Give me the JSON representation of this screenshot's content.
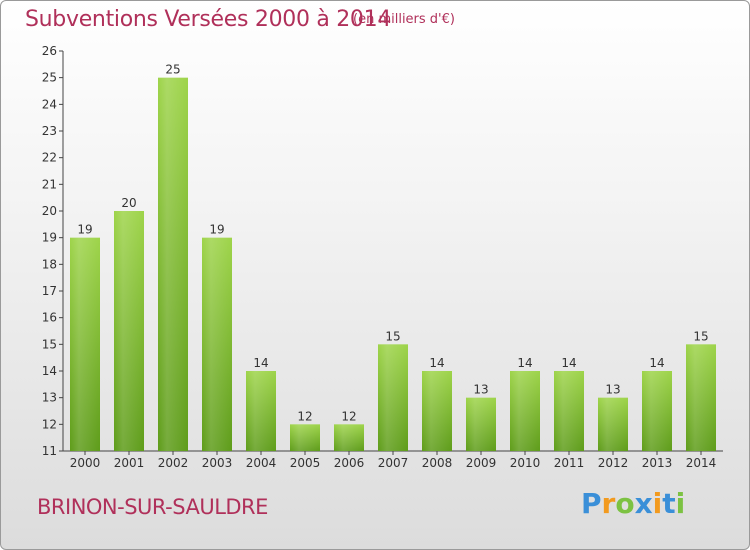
{
  "chart_data": {
    "type": "bar",
    "title": "Subventions Versées 2000 à 2014",
    "unit_note": "(en milliers d'€)",
    "categories": [
      "2000",
      "2001",
      "2002",
      "2003",
      "2004",
      "2005",
      "2006",
      "2007",
      "2008",
      "2009",
      "2010",
      "2011",
      "2012",
      "2013",
      "2014"
    ],
    "values": [
      19,
      20,
      25,
      19,
      14,
      12,
      12,
      15,
      14,
      13,
      14,
      14,
      13,
      14,
      15
    ],
    "ylim": [
      11,
      26
    ],
    "yticks": [
      11,
      12,
      13,
      14,
      15,
      16,
      17,
      18,
      19,
      20,
      21,
      22,
      23,
      24,
      25,
      26
    ],
    "grid": false,
    "xlabel": "",
    "ylabel": "",
    "bar_color": "#7fbf2a"
  },
  "footer": {
    "place_name": "BRINON-SUR-SAULDRE",
    "brand": "Proxiti",
    "brand_letters": [
      {
        "ch": "P",
        "color": "#3a8fd8"
      },
      {
        "ch": "r",
        "color": "#f29a1e"
      },
      {
        "ch": "o",
        "color": "#7cc242"
      },
      {
        "ch": "x",
        "color": "#3a8fd8"
      },
      {
        "ch": "i",
        "color": "#f29a1e"
      },
      {
        "ch": "t",
        "color": "#3a8fd8"
      },
      {
        "ch": "i",
        "color": "#7cc242"
      }
    ]
  }
}
